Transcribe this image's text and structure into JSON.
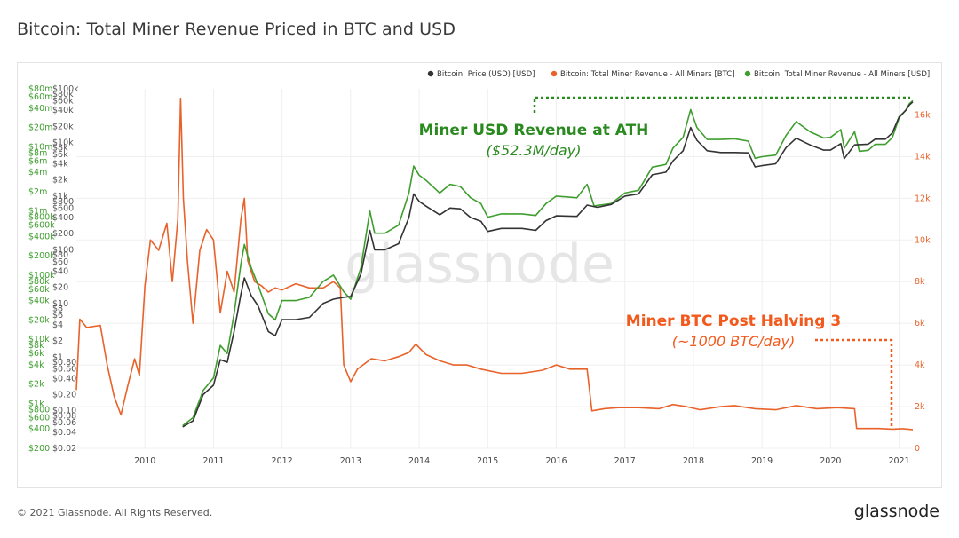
{
  "title": "Bitcoin: Total Miner Revenue Priced in BTC and USD",
  "footer": {
    "copyright": "© 2021 Glassnode. All Rights Reserved.",
    "logo": "glassnode"
  },
  "watermark": "glassnode",
  "colors": {
    "price": "#333333",
    "btc_revenue": "#e8622a",
    "usd_revenue": "#3f9e2f",
    "grid": "#efefef"
  },
  "chart_data": {
    "type": "line",
    "xlabel": "",
    "ylabel": "",
    "x_ticks": [
      "2010",
      "2011",
      "2012",
      "2013",
      "2014",
      "2015",
      "2016",
      "2017",
      "2018",
      "2019",
      "2020",
      "2021"
    ],
    "xlim": [
      2009.0,
      2021.2
    ],
    "y_left_usd_revenue_ticks": [
      "$80m",
      "$60m",
      "$40m",
      "$20m",
      "$10m",
      "$8m",
      "$6m",
      "$4m",
      "$2m",
      "$1m",
      "$800k",
      "$600k",
      "$400k",
      "$200k",
      "$100k",
      "$80k",
      "$60k",
      "$40k",
      "$20k",
      "$10k",
      "$8k",
      "$6k",
      "$4k",
      "$2k",
      "$1k",
      "$800",
      "$600",
      "$400",
      "$200"
    ],
    "y_left_usd_revenue_log": true,
    "y_left_usd_revenue_ylim": [
      200,
      80000000
    ],
    "y_left_price_ticks": [
      "$100k",
      "$80k",
      "$60k",
      "$40k",
      "$20k",
      "$10k",
      "$8k",
      "$6k",
      "$4k",
      "$2k",
      "$1k",
      "$800",
      "$600",
      "$400",
      "$200",
      "$100",
      "$80",
      "$60",
      "$40",
      "$20",
      "$10",
      "$8",
      "$6",
      "$4",
      "$2",
      "$1",
      "$0.80",
      "$0.60",
      "$0.40",
      "$0.20",
      "$0.10",
      "$0.08",
      "$0.06",
      "$0.04",
      "$0.02"
    ],
    "y_left_price_log": true,
    "y_left_price_ylim": [
      0.02,
      100000
    ],
    "y_right_btc_ticks": [
      "16k",
      "14k",
      "12k",
      "10k",
      "8k",
      "6k",
      "4k",
      "2k",
      "0"
    ],
    "y_right_btc_ylim": [
      0,
      17000
    ],
    "legend_position": "top-right",
    "series": [
      {
        "name": "Bitcoin: Price (USD) [USD]",
        "color": "#333333",
        "axis": "price",
        "points": [
          [
            2010.55,
            0.05
          ],
          [
            2010.7,
            0.065
          ],
          [
            2010.85,
            0.2
          ],
          [
            2011.0,
            0.3
          ],
          [
            2011.1,
            0.9
          ],
          [
            2011.2,
            0.8
          ],
          [
            2011.3,
            3
          ],
          [
            2011.4,
            15
          ],
          [
            2011.45,
            30
          ],
          [
            2011.55,
            14
          ],
          [
            2011.65,
            9
          ],
          [
            2011.8,
            3
          ],
          [
            2011.9,
            2.5
          ],
          [
            2012.0,
            5
          ],
          [
            2012.2,
            5
          ],
          [
            2012.4,
            5.5
          ],
          [
            2012.6,
            10
          ],
          [
            2012.75,
            12
          ],
          [
            2012.9,
            13
          ],
          [
            2013.0,
            13.5
          ],
          [
            2013.15,
            35
          ],
          [
            2013.28,
            230
          ],
          [
            2013.35,
            100
          ],
          [
            2013.5,
            100
          ],
          [
            2013.7,
            130
          ],
          [
            2013.85,
            400
          ],
          [
            2013.92,
            1100
          ],
          [
            2014.0,
            800
          ],
          [
            2014.1,
            650
          ],
          [
            2014.3,
            450
          ],
          [
            2014.45,
            600
          ],
          [
            2014.6,
            580
          ],
          [
            2014.75,
            400
          ],
          [
            2014.9,
            340
          ],
          [
            2015.0,
            220
          ],
          [
            2015.2,
            250
          ],
          [
            2015.5,
            250
          ],
          [
            2015.7,
            230
          ],
          [
            2015.85,
            350
          ],
          [
            2016.0,
            430
          ],
          [
            2016.3,
            420
          ],
          [
            2016.45,
            680
          ],
          [
            2016.6,
            620
          ],
          [
            2016.8,
            700
          ],
          [
            2017.0,
            1000
          ],
          [
            2017.2,
            1100
          ],
          [
            2017.4,
            2500
          ],
          [
            2017.6,
            2800
          ],
          [
            2017.7,
            4500
          ],
          [
            2017.85,
            7000
          ],
          [
            2017.96,
            19000
          ],
          [
            2018.05,
            11000
          ],
          [
            2018.2,
            7000
          ],
          [
            2018.4,
            6500
          ],
          [
            2018.6,
            6500
          ],
          [
            2018.8,
            6400
          ],
          [
            2018.9,
            3500
          ],
          [
            2019.0,
            3700
          ],
          [
            2019.2,
            4000
          ],
          [
            2019.35,
            8000
          ],
          [
            2019.5,
            12000
          ],
          [
            2019.7,
            9000
          ],
          [
            2019.9,
            7200
          ],
          [
            2020.0,
            7200
          ],
          [
            2020.15,
            9500
          ],
          [
            2020.2,
            5000
          ],
          [
            2020.35,
            9000
          ],
          [
            2020.55,
            9300
          ],
          [
            2020.65,
            11500
          ],
          [
            2020.8,
            11500
          ],
          [
            2020.9,
            15000
          ],
          [
            2021.0,
            30000
          ],
          [
            2021.1,
            40000
          ],
          [
            2021.15,
            50000
          ],
          [
            2021.2,
            57000
          ]
        ]
      },
      {
        "name": "Bitcoin: Total Miner Revenue - All Miners [BTC]",
        "color": "#e8622a",
        "axis": "btc",
        "points": [
          [
            2009.0,
            2800
          ],
          [
            2009.05,
            6200
          ],
          [
            2009.15,
            5800
          ],
          [
            2009.35,
            5900
          ],
          [
            2009.45,
            4000
          ],
          [
            2009.55,
            2500
          ],
          [
            2009.65,
            1600
          ],
          [
            2009.75,
            3000
          ],
          [
            2009.85,
            4300
          ],
          [
            2009.92,
            3500
          ],
          [
            2010.0,
            7800
          ],
          [
            2010.08,
            10000
          ],
          [
            2010.2,
            9500
          ],
          [
            2010.32,
            10800
          ],
          [
            2010.4,
            8000
          ],
          [
            2010.48,
            11000
          ],
          [
            2010.52,
            16800
          ],
          [
            2010.56,
            12000
          ],
          [
            2010.62,
            9000
          ],
          [
            2010.7,
            6000
          ],
          [
            2010.8,
            9500
          ],
          [
            2010.9,
            10500
          ],
          [
            2011.0,
            10000
          ],
          [
            2011.1,
            6500
          ],
          [
            2011.2,
            8500
          ],
          [
            2011.3,
            7500
          ],
          [
            2011.4,
            11000
          ],
          [
            2011.45,
            12000
          ],
          [
            2011.5,
            9000
          ],
          [
            2011.6,
            8000
          ],
          [
            2011.7,
            7800
          ],
          [
            2011.8,
            7500
          ],
          [
            2011.9,
            7700
          ],
          [
            2012.0,
            7600
          ],
          [
            2012.2,
            7900
          ],
          [
            2012.4,
            7700
          ],
          [
            2012.6,
            7700
          ],
          [
            2012.75,
            8000
          ],
          [
            2012.85,
            7700
          ],
          [
            2012.9,
            4000
          ],
          [
            2013.0,
            3200
          ],
          [
            2013.1,
            3800
          ],
          [
            2013.3,
            4300
          ],
          [
            2013.5,
            4200
          ],
          [
            2013.7,
            4400
          ],
          [
            2013.85,
            4600
          ],
          [
            2013.95,
            5000
          ],
          [
            2014.1,
            4500
          ],
          [
            2014.3,
            4200
          ],
          [
            2014.5,
            4000
          ],
          [
            2014.7,
            4000
          ],
          [
            2014.9,
            3800
          ],
          [
            2015.2,
            3600
          ],
          [
            2015.5,
            3600
          ],
          [
            2015.8,
            3750
          ],
          [
            2016.0,
            4000
          ],
          [
            2016.2,
            3800
          ],
          [
            2016.45,
            3800
          ],
          [
            2016.52,
            1800
          ],
          [
            2016.7,
            1900
          ],
          [
            2016.9,
            1950
          ],
          [
            2017.2,
            1950
          ],
          [
            2017.5,
            1900
          ],
          [
            2017.7,
            2100
          ],
          [
            2017.9,
            2000
          ],
          [
            2018.1,
            1850
          ],
          [
            2018.4,
            2000
          ],
          [
            2018.6,
            2050
          ],
          [
            2018.9,
            1900
          ],
          [
            2019.2,
            1850
          ],
          [
            2019.5,
            2050
          ],
          [
            2019.8,
            1900
          ],
          [
            2020.1,
            1950
          ],
          [
            2020.35,
            1900
          ],
          [
            2020.38,
            950
          ],
          [
            2020.5,
            950
          ],
          [
            2020.7,
            950
          ],
          [
            2020.9,
            920
          ],
          [
            2021.05,
            940
          ],
          [
            2021.2,
            900
          ]
        ]
      },
      {
        "name": "Bitcoin: Total Miner Revenue - All Miners [USD]",
        "color": "#3f9e2f",
        "axis": "usd_revenue",
        "points": [
          [
            2010.55,
            450
          ],
          [
            2010.7,
            600
          ],
          [
            2010.85,
            1600
          ],
          [
            2011.0,
            2500
          ],
          [
            2011.1,
            8000
          ],
          [
            2011.2,
            6000
          ],
          [
            2011.3,
            25000
          ],
          [
            2011.4,
            150000
          ],
          [
            2011.45,
            300000
          ],
          [
            2011.55,
            130000
          ],
          [
            2011.65,
            70000
          ],
          [
            2011.8,
            25000
          ],
          [
            2011.9,
            20000
          ],
          [
            2012.0,
            40000
          ],
          [
            2012.2,
            40000
          ],
          [
            2012.4,
            45000
          ],
          [
            2012.6,
            80000
          ],
          [
            2012.75,
            100000
          ],
          [
            2012.9,
            55000
          ],
          [
            2013.0,
            42000
          ],
          [
            2013.15,
            130000
          ],
          [
            2013.28,
            1000000
          ],
          [
            2013.35,
            450000
          ],
          [
            2013.5,
            450000
          ],
          [
            2013.7,
            600000
          ],
          [
            2013.85,
            1900000
          ],
          [
            2013.92,
            5000000
          ],
          [
            2014.0,
            3600000
          ],
          [
            2014.1,
            3000000
          ],
          [
            2014.3,
            1900000
          ],
          [
            2014.45,
            2600000
          ],
          [
            2014.6,
            2400000
          ],
          [
            2014.75,
            1600000
          ],
          [
            2014.9,
            1300000
          ],
          [
            2015.0,
            800000
          ],
          [
            2015.2,
            900000
          ],
          [
            2015.5,
            900000
          ],
          [
            2015.7,
            850000
          ],
          [
            2015.85,
            1300000
          ],
          [
            2016.0,
            1700000
          ],
          [
            2016.3,
            1600000
          ],
          [
            2016.45,
            2600000
          ],
          [
            2016.55,
            1200000
          ],
          [
            2016.8,
            1300000
          ],
          [
            2017.0,
            1900000
          ],
          [
            2017.2,
            2100000
          ],
          [
            2017.4,
            4800000
          ],
          [
            2017.6,
            5300000
          ],
          [
            2017.7,
            9500000
          ],
          [
            2017.85,
            14000000
          ],
          [
            2017.96,
            38000000
          ],
          [
            2018.05,
            20000000
          ],
          [
            2018.2,
            13000000
          ],
          [
            2018.4,
            13000000
          ],
          [
            2018.6,
            13300000
          ],
          [
            2018.8,
            12200000
          ],
          [
            2018.9,
            6600000
          ],
          [
            2019.0,
            7000000
          ],
          [
            2019.2,
            7400000
          ],
          [
            2019.35,
            15000000
          ],
          [
            2019.5,
            24600000
          ],
          [
            2019.7,
            17100000
          ],
          [
            2019.9,
            13700000
          ],
          [
            2020.0,
            14000000
          ],
          [
            2020.15,
            18500000
          ],
          [
            2020.2,
            9500000
          ],
          [
            2020.35,
            17100000
          ],
          [
            2020.42,
            8500000
          ],
          [
            2020.55,
            8800000
          ],
          [
            2020.65,
            10900000
          ],
          [
            2020.8,
            10900000
          ],
          [
            2020.9,
            13800000
          ],
          [
            2021.0,
            28200000
          ],
          [
            2021.1,
            37600000
          ],
          [
            2021.15,
            47000000
          ],
          [
            2021.2,
            52300000
          ]
        ]
      }
    ],
    "annotations": [
      {
        "text": "Miner USD Revenue at ATH",
        "color": "#2a8a1f"
      },
      {
        "text": "($52.3M/day)",
        "color": "#2a8a1f"
      },
      {
        "text": "Miner BTC Post Halving 3",
        "color": "#f25a1d"
      },
      {
        "text": "(~1000 BTC/day)",
        "color": "#f25a1d"
      }
    ]
  }
}
